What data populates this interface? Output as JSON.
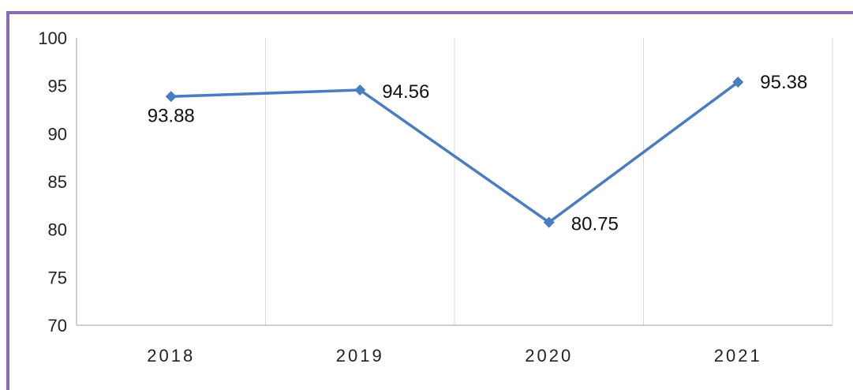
{
  "chart_data": {
    "type": "line",
    "categories": [
      "2018",
      "2019",
      "2020",
      "2021"
    ],
    "series": [
      {
        "values": [
          93.88,
          94.56,
          80.75,
          95.38
        ]
      }
    ],
    "data_labels": [
      "93.88",
      "94.56",
      "80.75",
      "95.38"
    ],
    "y_ticks": [
      "70",
      "75",
      "80",
      "85",
      "90",
      "95",
      "100"
    ],
    "ylim": [
      70,
      100
    ],
    "grid": "vertical",
    "legend": "none",
    "colors": {
      "line": "#4a7cc0",
      "grid": "#d9d9d9",
      "axis": "#bfbfbf",
      "frame": "#8a6bb0"
    }
  }
}
